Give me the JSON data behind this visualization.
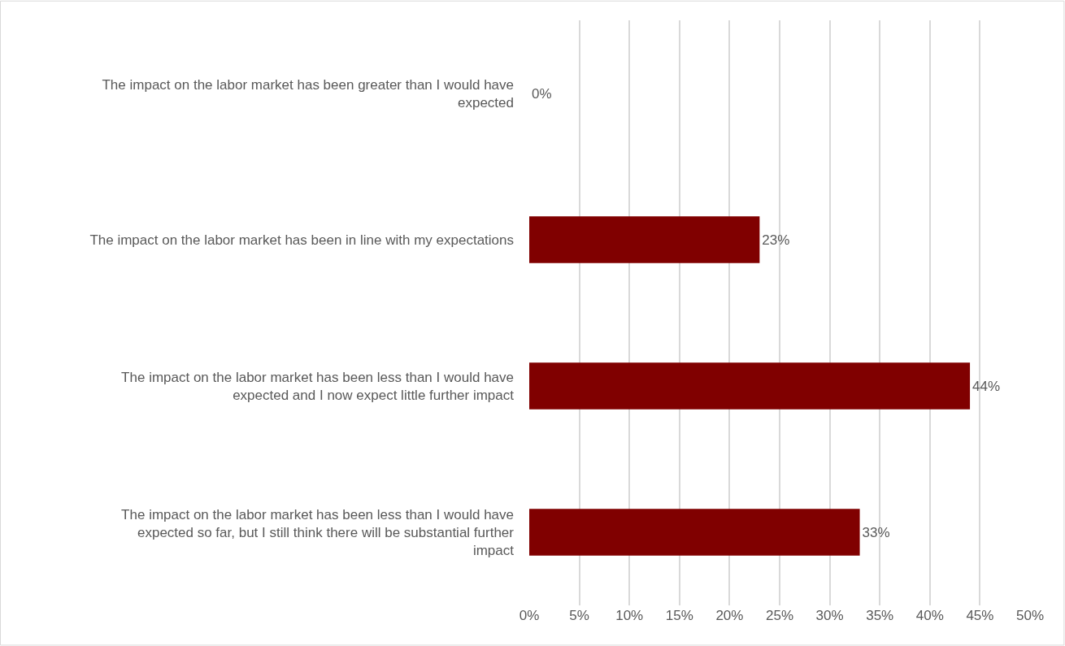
{
  "chart_data": {
    "type": "bar",
    "orientation": "horizontal",
    "categories": [
      "The impact on the labor market has been greater than I would have expected",
      "The impact on the labor market has been in line with my expectations",
      "The impact on the labor market has been less than I would have expected and I now expect little further impact",
      "The impact on the labor market has been less than I would have expected so far, but I still think there will be substantial further impact"
    ],
    "values": [
      0,
      23,
      44,
      33
    ],
    "color": "#800000",
    "value_labels": [
      "0%",
      "23%",
      "44%",
      "33%"
    ],
    "xlim": [
      0,
      50
    ],
    "xticks": [
      {
        "value": 0,
        "label": "0%"
      },
      {
        "value": 5,
        "label": "5%"
      },
      {
        "value": 10,
        "label": "10%"
      },
      {
        "value": 15,
        "label": "15%"
      },
      {
        "value": 20,
        "label": "20%"
      },
      {
        "value": 25,
        "label": "25%"
      },
      {
        "value": 30,
        "label": "30%"
      },
      {
        "value": 35,
        "label": "35%"
      },
      {
        "value": 40,
        "label": "40%"
      },
      {
        "value": 45,
        "label": "45%"
      },
      {
        "value": 50,
        "label": "50%"
      }
    ],
    "grid": "x"
  }
}
